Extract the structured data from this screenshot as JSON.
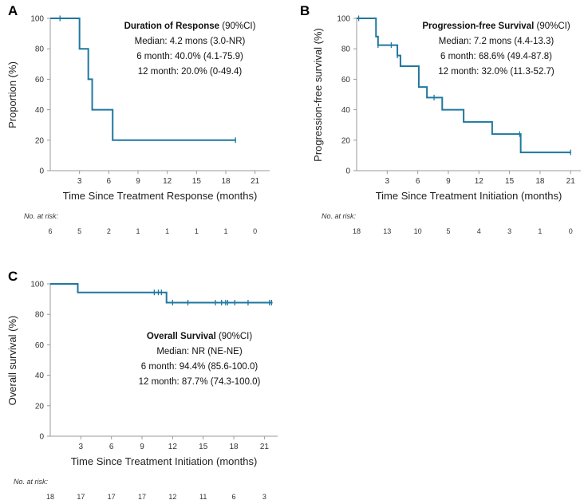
{
  "colors": {
    "curve": "#1f77a0",
    "axis": "#9a9a9a"
  },
  "chart_data": [
    {
      "id": "A",
      "type": "line",
      "step": true,
      "panel_label": "A",
      "title": "Duration of Response",
      "title_suffix": " (90%CI)",
      "annotations": [
        "Median: 4.2 mons (3.0-NR)",
        "6 month: 40.0% (4.1-75.9)",
        "12 month: 20.0% (0-49.4)"
      ],
      "xlabel": "Time Since Treatment Response (months)",
      "ylabel": "Proportion (%)",
      "xlim": [
        0,
        22.5
      ],
      "ylim": [
        0,
        100
      ],
      "xticks": [
        3,
        6,
        9,
        12,
        15,
        18,
        21
      ],
      "yticks": [
        0,
        20,
        40,
        60,
        80,
        100
      ],
      "steps": [
        [
          0,
          100
        ],
        [
          3.0,
          80
        ],
        [
          3.9,
          60
        ],
        [
          4.3,
          40
        ],
        [
          6.4,
          20
        ],
        [
          19.0,
          20
        ]
      ],
      "censored": [
        [
          1.0,
          100
        ],
        [
          19.0,
          20
        ]
      ],
      "risk_title": "No. at risk:",
      "risk_times": [
        0,
        3,
        6,
        9,
        12,
        15,
        18,
        21
      ],
      "risk_counts": [
        "6",
        "5",
        "2",
        "1",
        "1",
        "1",
        "1",
        "0"
      ]
    },
    {
      "id": "B",
      "type": "line",
      "step": true,
      "panel_label": "B",
      "title": "Progression-free Survival",
      "title_suffix": " (90%CI)",
      "annotations": [
        "Median: 7.2 mons (4.4-13.3)",
        "6 month: 68.6% (49.4-87.8)",
        "12 month: 32.0% (11.3-52.7)"
      ],
      "xlabel": "Time Since Treatment Initiation (months)",
      "ylabel": "Progression-free survival (%)",
      "xlim": [
        0,
        22
      ],
      "ylim": [
        0,
        100
      ],
      "xticks": [
        3,
        6,
        9,
        12,
        15,
        18,
        21
      ],
      "yticks": [
        0,
        20,
        40,
        60,
        80,
        100
      ],
      "steps": [
        [
          0,
          100
        ],
        [
          1.9,
          88
        ],
        [
          2.1,
          82.4
        ],
        [
          4.0,
          75.6
        ],
        [
          4.3,
          68.6
        ],
        [
          6.1,
          54.9
        ],
        [
          6.9,
          48.0
        ],
        [
          8.4,
          40.0
        ],
        [
          10.5,
          32.0
        ],
        [
          13.3,
          24.0
        ],
        [
          16.1,
          12.0
        ],
        [
          21.0,
          12.0
        ]
      ],
      "censored": [
        [
          0.2,
          100
        ],
        [
          2.1,
          82.4
        ],
        [
          3.4,
          82.4
        ],
        [
          4.0,
          75.6
        ],
        [
          7.6,
          48.0
        ],
        [
          16.0,
          24.0
        ],
        [
          21.0,
          12.0
        ]
      ],
      "risk_title": "No. at risk:",
      "risk_times": [
        0,
        3,
        6,
        9,
        12,
        15,
        18,
        21
      ],
      "risk_counts": [
        "18",
        "13",
        "10",
        "5",
        "4",
        "3",
        "1",
        "0"
      ]
    },
    {
      "id": "C",
      "type": "line",
      "step": true,
      "panel_label": "C",
      "title": "Overall Survival",
      "title_suffix": " (90%CI)",
      "annotations": [
        "Median: NR (NE-NE)",
        "6 month: 94.4% (85.6-100.0)",
        "12 month: 87.7% (74.3-100.0)"
      ],
      "xlabel": "Time Since Treatment Initiation (months)",
      "ylabel": "Overall survival (%)",
      "xlim": [
        0,
        22.3
      ],
      "ylim": [
        0,
        100
      ],
      "xticks": [
        3,
        6,
        9,
        12,
        15,
        18,
        21
      ],
      "yticks": [
        0,
        20,
        40,
        60,
        80,
        100
      ],
      "steps": [
        [
          0,
          100
        ],
        [
          2.7,
          94.4
        ],
        [
          11.4,
          87.7
        ],
        [
          21.8,
          87.7
        ]
      ],
      "censored": [
        [
          10.2,
          94.4
        ],
        [
          10.6,
          94.4
        ],
        [
          10.9,
          94.4
        ],
        [
          12.0,
          87.7
        ],
        [
          13.5,
          87.7
        ],
        [
          16.2,
          87.7
        ],
        [
          16.8,
          87.7
        ],
        [
          17.2,
          87.7
        ],
        [
          17.4,
          87.7
        ],
        [
          18.1,
          87.7
        ],
        [
          19.4,
          87.7
        ],
        [
          21.5,
          87.7
        ],
        [
          21.7,
          87.7
        ]
      ],
      "risk_title": "No. at risk:",
      "risk_times": [
        0,
        3,
        6,
        9,
        12,
        15,
        18,
        21
      ],
      "risk_counts": [
        "18",
        "17",
        "17",
        "17",
        "12",
        "11",
        "6",
        "3"
      ]
    }
  ]
}
